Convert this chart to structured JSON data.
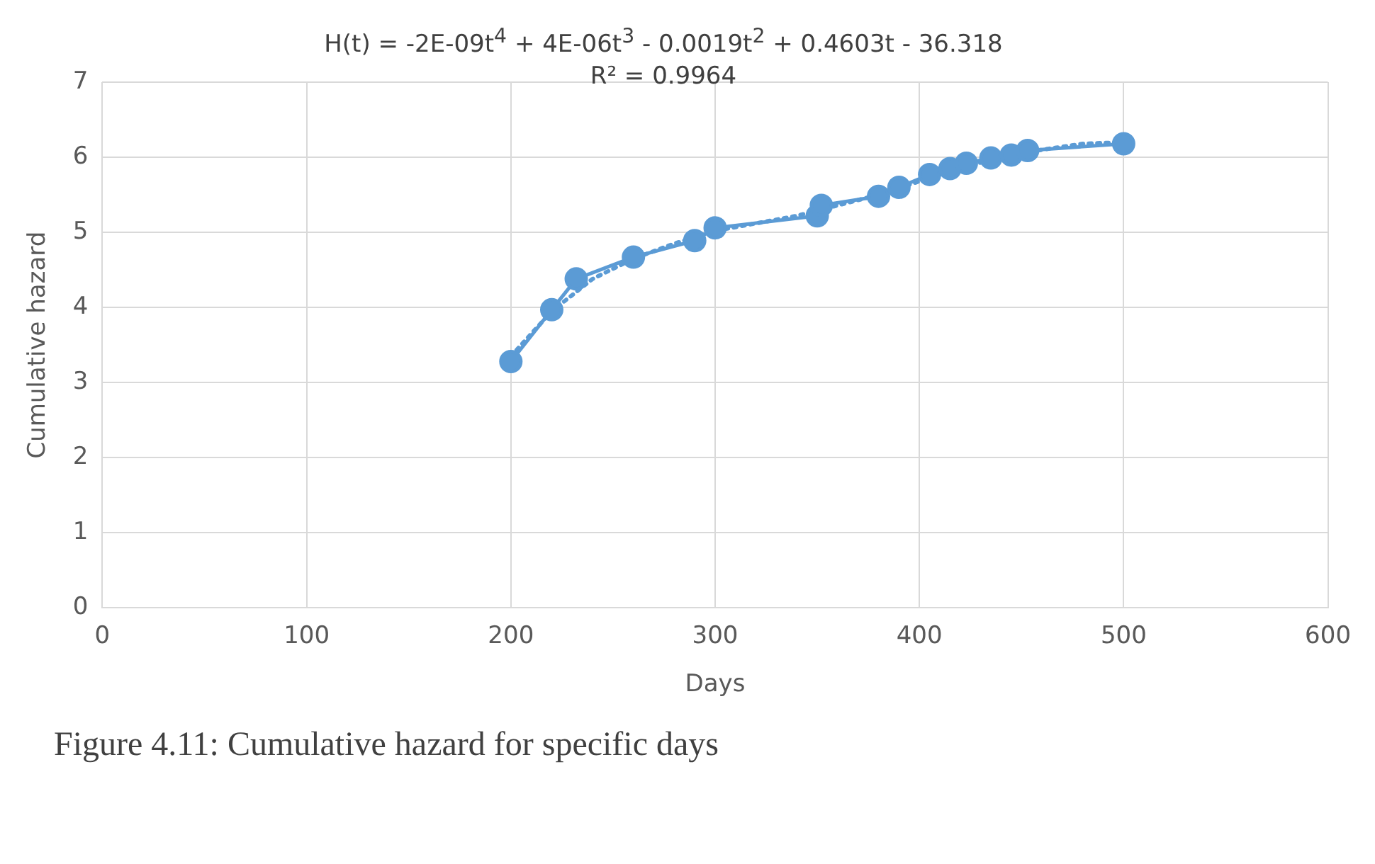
{
  "chart_data": {
    "type": "line",
    "xlabel": "Days",
    "ylabel": "Cumulative hazard",
    "annotations": [
      "H(t) = -2E-09t$^{4}$ + 4E-06t$^{3}$ - 0.0019t$^{2}$ + 0.4603t - 36.318",
      "R² = 0.9964",
      "Figure 4.11: Cumulative hazard for specific days"
    ],
    "xlim": [
      0,
      600
    ],
    "xticks": [
      0,
      100,
      200,
      300,
      400,
      500,
      600
    ],
    "ylim": [
      0,
      7
    ],
    "yticks": [
      0,
      1,
      2,
      3,
      4,
      5,
      6,
      7
    ],
    "grid": true,
    "legend": false,
    "series": [
      {
        "type": "line",
        "color": "#5b9bd5",
        "marker": "circle",
        "line_style": "solid",
        "x": [
          200,
          220,
          232,
          260,
          290,
          300,
          350,
          352,
          380,
          390,
          405,
          415,
          423,
          435,
          445,
          453,
          500
        ],
        "values": [
          3.28,
          3.97,
          4.38,
          4.67,
          4.89,
          5.06,
          5.22,
          5.36,
          5.48,
          5.6,
          5.77,
          5.85,
          5.92,
          5.99,
          6.03,
          6.09,
          6.18
        ]
      },
      {
        "type": "line",
        "color": "#5b9bd5",
        "marker": "none",
        "line_style": "dotted",
        "x": [
          200,
          220,
          240,
          260,
          280,
          300,
          320,
          340,
          360,
          380,
          400,
          420,
          440,
          460,
          480,
          500
        ],
        "values": [
          3.35,
          3.95,
          4.38,
          4.65,
          4.85,
          5.02,
          5.12,
          5.22,
          5.36,
          5.5,
          5.68,
          5.86,
          6.0,
          6.1,
          6.18,
          6.2
        ]
      }
    ]
  }
}
